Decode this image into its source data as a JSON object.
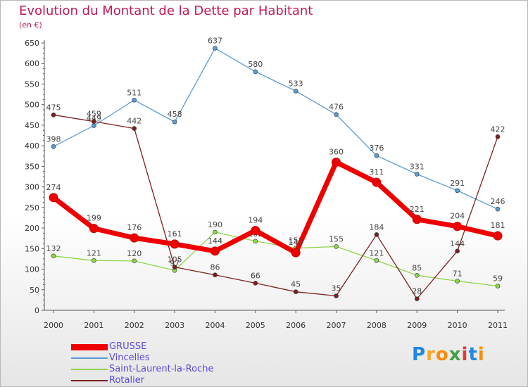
{
  "title": "Evolution du Montant de la Dette par Habitant",
  "unit": "(en €)",
  "brand": {
    "letters": [
      {
        "ch": "P",
        "color": "#1e88e5"
      },
      {
        "ch": "r",
        "color": "#f9a825"
      },
      {
        "ch": "o",
        "color": "#fb8c00"
      },
      {
        "ch": "x",
        "color": "#43a047"
      },
      {
        "ch": "i",
        "color": "#e53935"
      },
      {
        "ch": "t",
        "color": "#1e88e5"
      },
      {
        "ch": "i",
        "color": "#fb8c00"
      }
    ]
  },
  "chart_data": {
    "type": "line",
    "title": "Evolution du Montant de la Dette par Habitant",
    "ylabel": "(en €)",
    "xlabel": "",
    "x": [
      "2000",
      "2001",
      "2002",
      "2003",
      "2004",
      "2005",
      "2006",
      "2007",
      "2008",
      "2009",
      "2010",
      "2011"
    ],
    "ylim": [
      0,
      650
    ],
    "yticks": [
      0,
      50,
      100,
      150,
      200,
      250,
      300,
      350,
      400,
      450,
      500,
      550,
      600,
      650
    ],
    "grid": false,
    "legend_position": "bottom-left",
    "series": [
      {
        "name": "GRUSSE",
        "color": "#ee0000",
        "width": 7,
        "values": [
          274,
          199,
          176,
          161,
          144,
          194,
          140,
          360,
          311,
          221,
          204,
          181
        ]
      },
      {
        "name": "Vincelles",
        "color": "#5b9bd5",
        "width": 1.3,
        "values": [
          398,
          449,
          511,
          458,
          637,
          580,
          533,
          476,
          376,
          331,
          291,
          246
        ]
      },
      {
        "name": "Saint-Laurent-la-Roche",
        "color": "#8fd44a",
        "width": 1.3,
        "values": [
          132,
          121,
          120,
          97,
          190,
          168,
          151,
          155,
          121,
          85,
          71,
          59
        ]
      },
      {
        "name": "Rotalier",
        "color": "#7b2020",
        "width": 1.3,
        "values": [
          475,
          459,
          442,
          105,
          86,
          66,
          45,
          35,
          184,
          28,
          144,
          422
        ]
      }
    ]
  }
}
